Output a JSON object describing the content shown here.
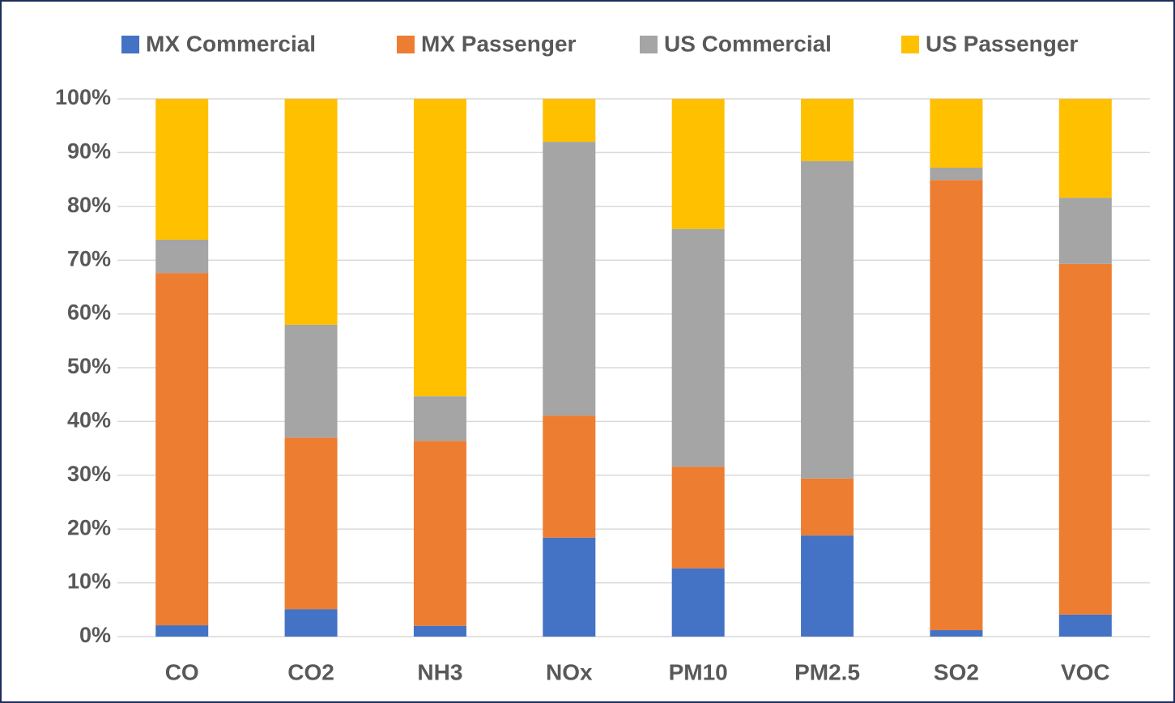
{
  "chart_data": {
    "type": "stacked_bar",
    "categories": [
      "CO",
      "CO2",
      "NH3",
      "NOx",
      "PM10",
      "PM2.5",
      "SO2",
      "VOC"
    ],
    "series": [
      {
        "name": "MX Commercial",
        "color": "#4472c4",
        "values": [
          2.1,
          5.1,
          2.0,
          18.4,
          12.7,
          18.8,
          1.2,
          4.1
        ]
      },
      {
        "name": "MX Passenger",
        "color": "#ed7d31",
        "values": [
          65.5,
          31.9,
          34.4,
          22.7,
          18.9,
          10.6,
          83.7,
          65.2
        ]
      },
      {
        "name": "US Commercial",
        "color": "#a5a5a5",
        "values": [
          6.2,
          21.0,
          8.3,
          50.9,
          44.2,
          59.0,
          2.3,
          12.3
        ]
      },
      {
        "name": "US Passenger",
        "color": "#ffc000",
        "values": [
          26.2,
          42.0,
          55.3,
          8.0,
          24.2,
          11.6,
          12.8,
          18.4
        ]
      }
    ],
    "ylim": [
      0,
      100
    ],
    "yticks": [
      {
        "value": 0,
        "label": "0%"
      },
      {
        "value": 10,
        "label": "10%"
      },
      {
        "value": 20,
        "label": "20%"
      },
      {
        "value": 30,
        "label": "30%"
      },
      {
        "value": 40,
        "label": "40%"
      },
      {
        "value": 50,
        "label": "50%"
      },
      {
        "value": 60,
        "label": "60%"
      },
      {
        "value": 70,
        "label": "70%"
      },
      {
        "value": 80,
        "label": "80%"
      },
      {
        "value": 90,
        "label": "90%"
      },
      {
        "value": 100,
        "label": "100%"
      }
    ],
    "grid": true,
    "legend": "top"
  }
}
